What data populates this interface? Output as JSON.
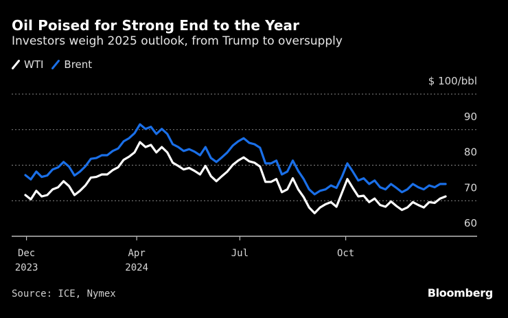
{
  "header": {
    "title": "Oil Poised for Strong End to the Year",
    "subtitle": "Investors weigh 2025 outlook, from Trump to oversupply"
  },
  "footer": {
    "source": "Source: ICE, Nymex",
    "brand": "Bloomberg"
  },
  "chart_data": {
    "type": "line",
    "title": "Oil Poised for Strong End to the Year",
    "subtitle": "Investors weigh 2025 outlook, from Trump to oversupply",
    "xlabel": "",
    "ylabel": "$ 100/bbl",
    "ylim": [
      60,
      100
    ],
    "yticks": [
      60,
      70,
      80,
      90,
      100
    ],
    "ytick_labels": [
      "60",
      "70",
      "80",
      "90",
      "$ 100/bbl"
    ],
    "grid": true,
    "legend_position": "top-left",
    "x_range": [
      0,
      78
    ],
    "xticks": [
      {
        "pos": 0.2,
        "label": "Dec",
        "sublabel": "2023"
      },
      {
        "pos": 20.4,
        "label": "Apr",
        "sublabel": "2024"
      },
      {
        "pos": 39.3,
        "label": "Jul",
        "sublabel": ""
      },
      {
        "pos": 58.7,
        "label": "Oct",
        "sublabel": ""
      }
    ],
    "series": [
      {
        "name": "Brent",
        "color": "#1a6fe8",
        "values": [
          77.2,
          76.0,
          78.2,
          76.7,
          77.1,
          78.8,
          79.4,
          80.9,
          79.6,
          77.1,
          78.2,
          79.7,
          81.8,
          82.0,
          82.8,
          82.8,
          84.0,
          84.7,
          86.7,
          87.6,
          89.0,
          91.5,
          90.2,
          90.8,
          88.8,
          90.2,
          88.8,
          85.9,
          85.1,
          84.0,
          84.5,
          83.8,
          82.8,
          85.1,
          82.0,
          80.9,
          82.2,
          83.6,
          85.5,
          86.7,
          87.6,
          86.3,
          85.9,
          84.9,
          80.5,
          80.5,
          81.3,
          77.4,
          78.2,
          81.3,
          78.4,
          76.1,
          73.2,
          71.8,
          72.8,
          73.2,
          74.3,
          73.6,
          76.7,
          80.5,
          78.2,
          75.7,
          76.3,
          74.7,
          75.7,
          73.8,
          73.2,
          74.7,
          73.6,
          72.4,
          73.2,
          74.7,
          73.8,
          73.2,
          74.3,
          73.8,
          74.7,
          74.7
        ]
      },
      {
        "name": "WTI",
        "color": "#ffffff",
        "values": [
          71.6,
          70.4,
          72.8,
          71.2,
          71.6,
          73.2,
          73.8,
          75.5,
          74.1,
          71.6,
          72.8,
          74.3,
          76.5,
          76.7,
          77.4,
          77.4,
          78.6,
          79.4,
          81.5,
          82.4,
          83.6,
          86.5,
          85.1,
          85.7,
          83.6,
          85.1,
          83.6,
          80.7,
          79.8,
          78.8,
          79.2,
          78.4,
          77.4,
          79.8,
          76.9,
          75.5,
          76.9,
          78.2,
          80.1,
          81.3,
          82.2,
          81.1,
          80.7,
          79.6,
          75.3,
          75.3,
          76.1,
          72.4,
          73.2,
          76.3,
          73.2,
          71.0,
          68.1,
          66.5,
          68.1,
          69.0,
          69.6,
          68.3,
          72.2,
          76.1,
          73.6,
          71.2,
          71.4,
          69.6,
          70.6,
          68.8,
          68.3,
          69.8,
          68.5,
          67.4,
          68.1,
          69.6,
          68.8,
          68.1,
          69.6,
          69.4,
          70.6,
          71.2
        ]
      }
    ]
  }
}
